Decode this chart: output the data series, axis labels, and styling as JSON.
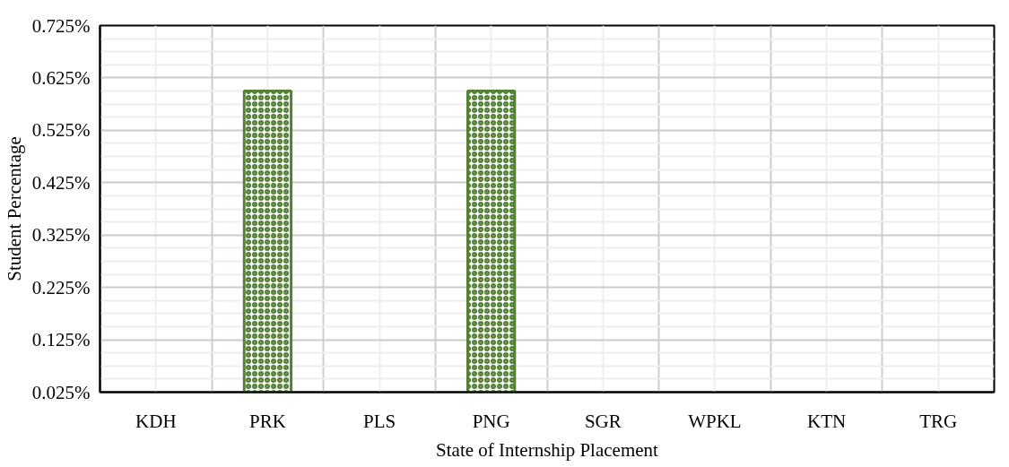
{
  "chart_data": {
    "type": "bar",
    "xlabel": "State of Internship Placement",
    "ylabel": "Student Percentage",
    "categories": [
      "KDH",
      "PRK",
      "PLS",
      "PNG",
      "SGR",
      "WPKL",
      "KTN",
      "TRG"
    ],
    "values": [
      null,
      0.6,
      null,
      0.6,
      null,
      null,
      null,
      null
    ],
    "color": "#538135",
    "ylim": [
      0.025,
      0.725
    ],
    "yticks": [
      {
        "value": 0.025,
        "label": "0.025%"
      },
      {
        "value": 0.125,
        "label": "0.125%"
      },
      {
        "value": 0.225,
        "label": "0.225%"
      },
      {
        "value": 0.325,
        "label": "0.325%"
      },
      {
        "value": 0.425,
        "label": "0.425%"
      },
      {
        "value": 0.525,
        "label": "0.525%"
      },
      {
        "value": 0.625,
        "label": "0.625%"
      },
      {
        "value": 0.725,
        "label": "0.725%"
      }
    ],
    "grid": true
  }
}
